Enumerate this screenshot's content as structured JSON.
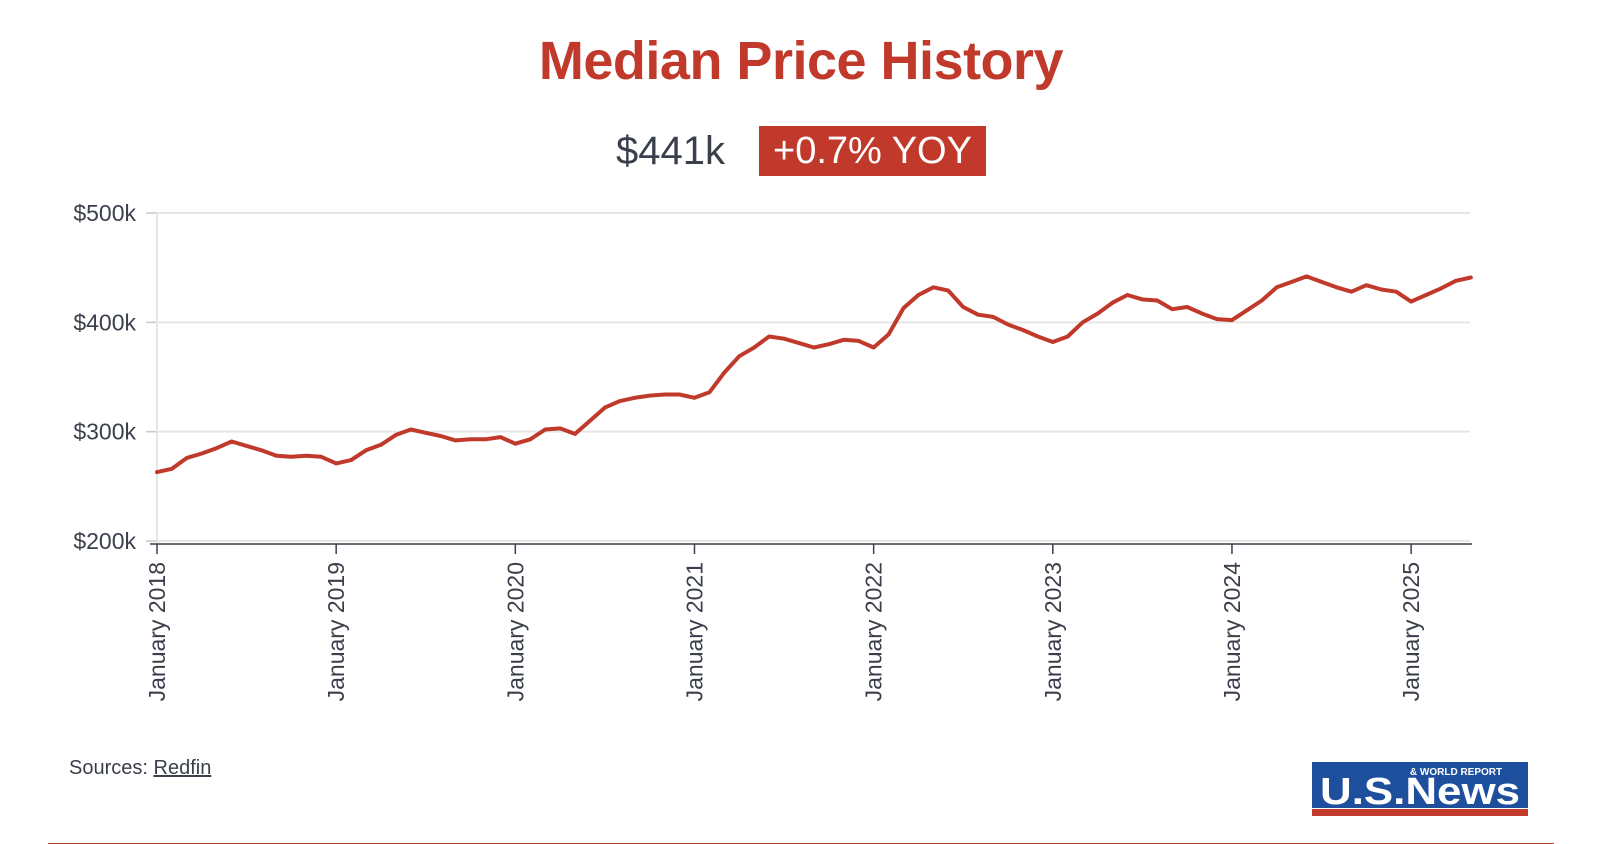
{
  "header": {
    "title": "Median Price History",
    "current_price": "$441k",
    "yoy_badge": "+0.7% YOY"
  },
  "footer": {
    "sources_label": "Sources:",
    "source_link": "Redfin",
    "logo_top_text": "& WORLD REPORT",
    "logo_main_text": "U.S.News"
  },
  "colors": {
    "accent": "#c0392b",
    "logo_blue": "#1e4f9c",
    "text": "#3a3f4b",
    "grid": "#e6e6e6"
  },
  "chart_data": {
    "type": "line",
    "title": "Median Price History",
    "xlabel": "",
    "ylabel": "",
    "ylim": [
      200,
      500
    ],
    "y_unit": "thousands USD",
    "y_ticks": [
      200,
      300,
      400,
      500
    ],
    "y_tick_labels": [
      "$200k",
      "$300k",
      "$400k",
      "$500k"
    ],
    "x_tick_labels": [
      "January 2018",
      "January 2019",
      "January 2020",
      "January 2021",
      "January 2022",
      "January 2023",
      "January 2024",
      "January 2025"
    ],
    "grid": true,
    "x": [
      "2018-01",
      "2018-02",
      "2018-03",
      "2018-04",
      "2018-05",
      "2018-06",
      "2018-07",
      "2018-08",
      "2018-09",
      "2018-10",
      "2018-11",
      "2018-12",
      "2019-01",
      "2019-02",
      "2019-03",
      "2019-04",
      "2019-05",
      "2019-06",
      "2019-07",
      "2019-08",
      "2019-09",
      "2019-10",
      "2019-11",
      "2019-12",
      "2020-01",
      "2020-02",
      "2020-03",
      "2020-04",
      "2020-05",
      "2020-06",
      "2020-07",
      "2020-08",
      "2020-09",
      "2020-10",
      "2020-11",
      "2020-12",
      "2021-01",
      "2021-02",
      "2021-03",
      "2021-04",
      "2021-05",
      "2021-06",
      "2021-07",
      "2021-08",
      "2021-09",
      "2021-10",
      "2021-11",
      "2021-12",
      "2022-01",
      "2022-02",
      "2022-03",
      "2022-04",
      "2022-05",
      "2022-06",
      "2022-07",
      "2022-08",
      "2022-09",
      "2022-10",
      "2022-11",
      "2022-12",
      "2023-01",
      "2023-02",
      "2023-03",
      "2023-04",
      "2023-05",
      "2023-06",
      "2023-07",
      "2023-08",
      "2023-09",
      "2023-10",
      "2023-11",
      "2023-12",
      "2024-01",
      "2024-02",
      "2024-03",
      "2024-04",
      "2024-05",
      "2024-06",
      "2024-07",
      "2024-08",
      "2024-09",
      "2024-10",
      "2024-11",
      "2024-12",
      "2025-01",
      "2025-02",
      "2025-03",
      "2025-04",
      "2025-05"
    ],
    "series": [
      {
        "values": [
          263,
          266,
          276,
          280,
          285,
          291,
          287,
          283,
          278,
          277,
          278,
          277,
          271,
          274,
          283,
          288,
          297,
          302,
          299,
          296,
          292,
          293,
          293,
          295,
          289,
          293,
          302,
          303,
          298,
          310,
          322,
          328,
          331,
          333,
          334,
          334,
          331,
          336,
          354,
          369,
          377,
          387,
          385,
          381,
          377,
          380,
          384,
          383,
          377,
          389,
          413,
          425,
          432,
          429,
          414,
          407,
          405,
          398,
          393,
          387,
          382,
          387,
          400,
          408,
          418,
          425,
          421,
          420,
          412,
          414,
          408,
          403,
          402,
          411,
          420,
          432,
          437,
          442,
          437,
          432,
          428,
          434,
          430,
          428,
          419,
          425,
          431,
          438,
          441
        ]
      }
    ]
  }
}
